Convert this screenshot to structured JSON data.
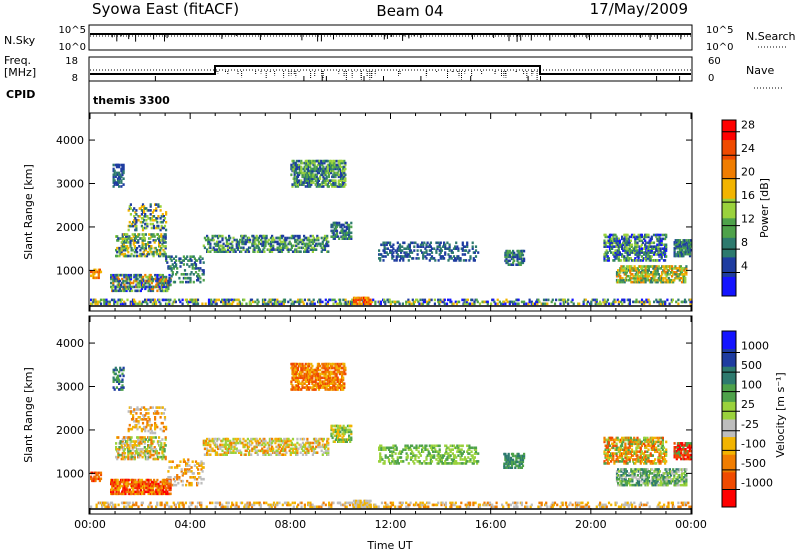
{
  "header": {
    "station": "Syowa East (fitACF)",
    "beam": "Beam 04",
    "date": "17/May/2009"
  },
  "status_panels": {
    "nsky_label": "N.Sky",
    "nsearch_label": "N.Search",
    "noise_ticks": [
      "10^5",
      "10^0"
    ],
    "freq_label_1": "Freq.",
    "freq_label_2": "[MHz]",
    "freq_ticks": [
      "18",
      "8"
    ],
    "nave_label": "Nave",
    "nave_ticks": [
      "60",
      "0"
    ],
    "cpid_label": "CPID",
    "cpid_value": "themis 3300"
  },
  "legend_style": {
    "nsearch_line": "dotted",
    "nave_line": "dotted"
  },
  "colors": {
    "power_scale": [
      "#1414ff",
      "#1e3ca0",
      "#2d7a6e",
      "#4ea24a",
      "#9ad23c",
      "#f2b400",
      "#f07d00",
      "#f04a00",
      "#ff0000"
    ],
    "velocity_scale": [
      "#ff0000",
      "#f04a00",
      "#f07d00",
      "#f2b400",
      "#bdbdbd",
      "#9ad23c",
      "#4ea24a",
      "#2d7a6e",
      "#1e3ca0",
      "#1414ff"
    ]
  },
  "chart_data": [
    {
      "type": "heatmap",
      "name": "power",
      "ylabel": "Slant Range [km]",
      "yticks": [
        1000,
        2000,
        3000,
        4000
      ],
      "ylim": [
        180,
        4600
      ],
      "xlim_hours": [
        0,
        24
      ],
      "colorbar_label": "Power [dB]",
      "colorbar_ticks": [
        4,
        8,
        12,
        16,
        20,
        24,
        28
      ],
      "colorbar_range": [
        0,
        30
      ],
      "regions": [
        {
          "t": [
            0.0,
            24.0
          ],
          "r": [
            200,
            330
          ],
          "density": 0.35,
          "levels": [
            0,
            1,
            2,
            3,
            4,
            5
          ]
        },
        {
          "t": [
            0.0,
            0.4
          ],
          "r": [
            800,
            1000
          ],
          "density": 0.5,
          "levels": [
            5,
            6,
            7
          ]
        },
        {
          "t": [
            0.8,
            3.2
          ],
          "r": [
            500,
            900
          ],
          "density": 0.55,
          "levels": [
            0,
            1,
            2,
            3,
            4,
            6
          ]
        },
        {
          "t": [
            1.0,
            3.0
          ],
          "r": [
            1300,
            1800
          ],
          "density": 0.45,
          "levels": [
            1,
            2,
            3,
            4,
            5
          ]
        },
        {
          "t": [
            1.5,
            3.0
          ],
          "r": [
            1900,
            2500
          ],
          "density": 0.25,
          "levels": [
            1,
            2,
            4,
            5
          ]
        },
        {
          "t": [
            0.9,
            1.3
          ],
          "r": [
            2900,
            3400
          ],
          "density": 0.45,
          "levels": [
            1,
            2
          ]
        },
        {
          "t": [
            3.0,
            4.5
          ],
          "r": [
            700,
            1300
          ],
          "density": 0.25,
          "levels": [
            1,
            2,
            3
          ]
        },
        {
          "t": [
            4.5,
            9.5
          ],
          "r": [
            1400,
            1800
          ],
          "density": 0.4,
          "levels": [
            1,
            2,
            3,
            4
          ]
        },
        {
          "t": [
            8.0,
            10.2
          ],
          "r": [
            2900,
            3500
          ],
          "density": 0.6,
          "levels": [
            1,
            2,
            3,
            4
          ]
        },
        {
          "t": [
            9.6,
            10.4
          ],
          "r": [
            1700,
            2100
          ],
          "density": 0.55,
          "levels": [
            1,
            2,
            3
          ]
        },
        {
          "t": [
            10.5,
            11.2
          ],
          "r": [
            200,
            350
          ],
          "density": 0.7,
          "levels": [
            5,
            6,
            7,
            8
          ]
        },
        {
          "t": [
            11.5,
            15.5
          ],
          "r": [
            1200,
            1650
          ],
          "density": 0.3,
          "levels": [
            1,
            2
          ]
        },
        {
          "t": [
            16.5,
            17.3
          ],
          "r": [
            1100,
            1450
          ],
          "density": 0.5,
          "levels": [
            1,
            2,
            3
          ]
        },
        {
          "t": [
            20.5,
            23.0
          ],
          "r": [
            1200,
            1800
          ],
          "density": 0.5,
          "levels": [
            0,
            1,
            2,
            3,
            4
          ]
        },
        {
          "t": [
            21.0,
            23.8
          ],
          "r": [
            700,
            1100
          ],
          "density": 0.55,
          "levels": [
            2,
            3,
            4,
            5,
            6
          ]
        },
        {
          "t": [
            23.3,
            24.0
          ],
          "r": [
            1300,
            1700
          ],
          "density": 0.6,
          "levels": [
            1,
            2,
            3
          ]
        }
      ]
    },
    {
      "type": "heatmap",
      "name": "velocity",
      "ylabel": "Slant Range [km]",
      "yticks": [
        1000,
        2000,
        3000,
        4000
      ],
      "ylim": [
        180,
        4600
      ],
      "xlim_hours": [
        0,
        24
      ],
      "xticks": [
        "00:00",
        "04:00",
        "08:00",
        "12:00",
        "16:00",
        "20:00",
        "00:00"
      ],
      "xlabel": "Time UT",
      "colorbar_label": "Velocity [m s⁻¹]",
      "colorbar_ticks": [
        1000,
        500,
        100,
        25,
        -25,
        -100,
        -500,
        -1000
      ],
      "regions": [
        {
          "t": [
            0.0,
            24.0
          ],
          "r": [
            200,
            330
          ],
          "density": 0.3,
          "levels": [
            3,
            4,
            2
          ]
        },
        {
          "t": [
            0.0,
            0.4
          ],
          "r": [
            800,
            1000
          ],
          "density": 0.5,
          "levels": [
            0,
            1,
            2
          ]
        },
        {
          "t": [
            0.8,
            3.2
          ],
          "r": [
            500,
            850
          ],
          "density": 0.7,
          "levels": [
            0,
            1,
            2,
            3
          ]
        },
        {
          "t": [
            1.0,
            3.0
          ],
          "r": [
            1300,
            1800
          ],
          "density": 0.45,
          "levels": [
            2,
            3,
            4,
            5,
            6
          ]
        },
        {
          "t": [
            1.5,
            3.0
          ],
          "r": [
            1900,
            2500
          ],
          "density": 0.2,
          "levels": [
            2,
            3,
            4
          ]
        },
        {
          "t": [
            0.9,
            1.3
          ],
          "r": [
            2900,
            3400
          ],
          "density": 0.4,
          "levels": [
            6,
            7,
            8
          ]
        },
        {
          "t": [
            3.0,
            4.5
          ],
          "r": [
            700,
            1300
          ],
          "density": 0.2,
          "levels": [
            2,
            3,
            4
          ]
        },
        {
          "t": [
            4.5,
            9.5
          ],
          "r": [
            1400,
            1800
          ],
          "density": 0.4,
          "levels": [
            2,
            3,
            4,
            5
          ]
        },
        {
          "t": [
            8.0,
            10.2
          ],
          "r": [
            2900,
            3500
          ],
          "density": 0.6,
          "levels": [
            1,
            2,
            3
          ]
        },
        {
          "t": [
            9.6,
            10.4
          ],
          "r": [
            1700,
            2100
          ],
          "density": 0.5,
          "levels": [
            3,
            5,
            6
          ]
        },
        {
          "t": [
            10.5,
            11.2
          ],
          "r": [
            200,
            350
          ],
          "density": 0.6,
          "levels": [
            4,
            3
          ]
        },
        {
          "t": [
            11.5,
            15.5
          ],
          "r": [
            1200,
            1650
          ],
          "density": 0.35,
          "levels": [
            5,
            6
          ]
        },
        {
          "t": [
            16.5,
            17.3
          ],
          "r": [
            1100,
            1450
          ],
          "density": 0.5,
          "levels": [
            6,
            7
          ]
        },
        {
          "t": [
            20.5,
            23.0
          ],
          "r": [
            1200,
            1800
          ],
          "density": 0.5,
          "levels": [
            1,
            2,
            3,
            5,
            6
          ]
        },
        {
          "t": [
            21.0,
            23.8
          ],
          "r": [
            700,
            1100
          ],
          "density": 0.55,
          "levels": [
            5,
            6,
            7,
            4
          ]
        },
        {
          "t": [
            23.3,
            24.0
          ],
          "r": [
            1300,
            1700
          ],
          "density": 0.6,
          "levels": [
            0,
            1,
            6
          ]
        }
      ]
    }
  ]
}
